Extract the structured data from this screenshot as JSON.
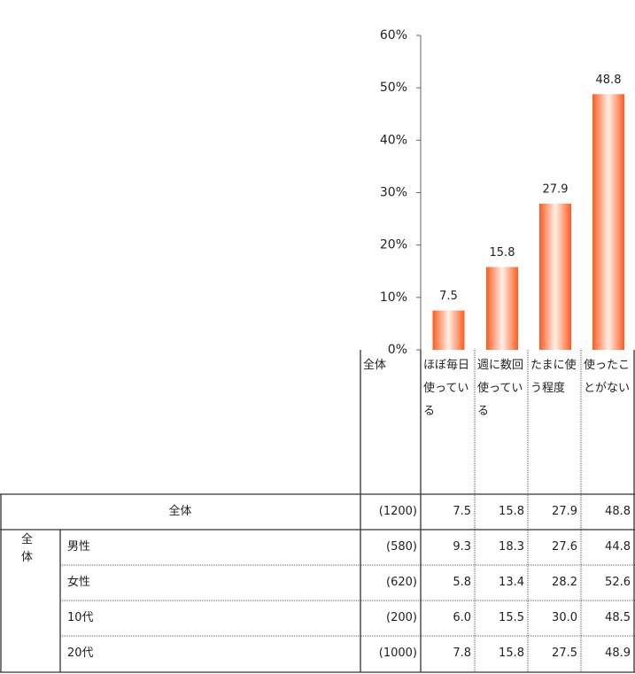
{
  "chart_data": {
    "type": "bar",
    "categories": [
      "ほぼ毎日使っている",
      "週に数回使っている",
      "たまに使う程度",
      "使ったことがない"
    ],
    "values": [
      7.5,
      15.8,
      27.9,
      48.8
    ],
    "color": "#ff5a1f",
    "ylim": [
      0,
      60
    ],
    "yticks": [
      {
        "value": 0,
        "label": "0%"
      },
      {
        "value": 10,
        "label": "10%"
      },
      {
        "value": 20,
        "label": "20%"
      },
      {
        "value": 30,
        "label": "30%"
      },
      {
        "value": 40,
        "label": "40%"
      },
      {
        "value": 50,
        "label": "50%"
      },
      {
        "value": 60,
        "label": "60%"
      }
    ]
  },
  "table": {
    "n_header": "全体",
    "total": {
      "label": "全体",
      "n": "(1200)",
      "values": [
        "7.5",
        "15.8",
        "27.9",
        "48.8"
      ]
    },
    "group": "全体",
    "rows": [
      {
        "label": "男性",
        "n": "(580)",
        "values": [
          "9.3",
          "18.3",
          "27.6",
          "44.8"
        ]
      },
      {
        "label": "女性",
        "n": "(620)",
        "values": [
          "5.8",
          "13.4",
          "28.2",
          "52.6"
        ]
      },
      {
        "label": "10代",
        "n": "(200)",
        "values": [
          "6.0",
          "15.5",
          "30.0",
          "48.5"
        ]
      },
      {
        "label": "20代",
        "n": "(1000)",
        "values": [
          "7.8",
          "15.8",
          "27.5",
          "48.9"
        ]
      }
    ]
  }
}
